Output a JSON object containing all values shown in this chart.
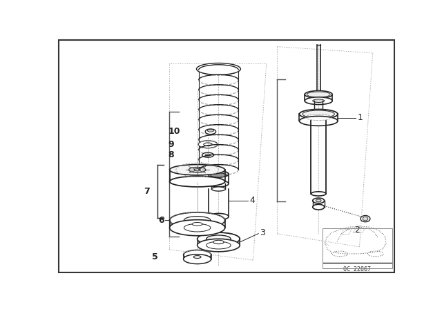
{
  "bg_color": "#ffffff",
  "line_color": "#222222",
  "dash_color": "#999999",
  "label_color": "#111111",
  "fig_width": 6.4,
  "fig_height": 4.48,
  "dpi": 100
}
